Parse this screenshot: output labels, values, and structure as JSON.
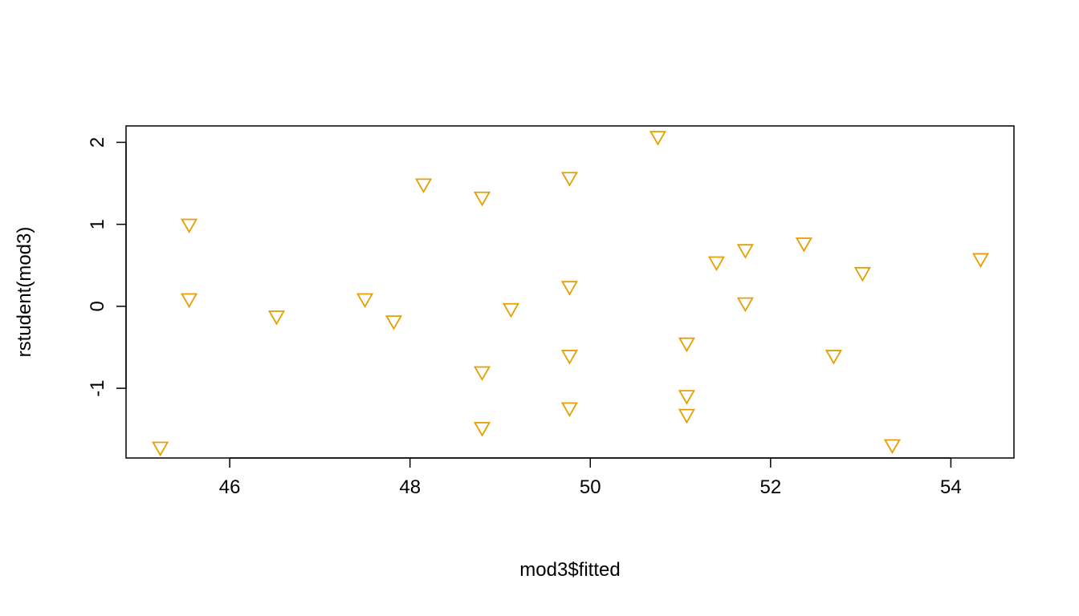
{
  "chart_data": {
    "type": "scatter",
    "title": "",
    "xlabel": "mod3$fitted",
    "ylabel": "rstudent(mod3)",
    "xlim": [
      44.85,
      54.7
    ],
    "ylim": [
      -1.85,
      2.2
    ],
    "xticks": [
      46,
      48,
      50,
      52,
      54
    ],
    "xtick_labels": [
      "46",
      "48",
      "50",
      "52",
      "54"
    ],
    "yticks": [
      -1,
      0,
      1,
      2
    ],
    "ytick_labels": [
      "-1",
      "0",
      "1",
      "2"
    ],
    "grid": false,
    "marker": "down-triangle",
    "marker_color": "#E69F00",
    "points": [
      {
        "x": 45.23,
        "y": -1.73
      },
      {
        "x": 45.55,
        "y": 0.99
      },
      {
        "x": 45.55,
        "y": 0.08
      },
      {
        "x": 46.52,
        "y": -0.13
      },
      {
        "x": 47.5,
        "y": 0.08
      },
      {
        "x": 47.82,
        "y": -0.19
      },
      {
        "x": 48.15,
        "y": 1.48
      },
      {
        "x": 48.8,
        "y": 1.32
      },
      {
        "x": 48.8,
        "y": -0.81
      },
      {
        "x": 48.8,
        "y": -1.49
      },
      {
        "x": 49.12,
        "y": -0.04
      },
      {
        "x": 49.77,
        "y": 1.56
      },
      {
        "x": 49.77,
        "y": 0.23
      },
      {
        "x": 49.77,
        "y": -0.61
      },
      {
        "x": 49.77,
        "y": -1.25
      },
      {
        "x": 50.75,
        "y": 2.06
      },
      {
        "x": 51.07,
        "y": -0.46
      },
      {
        "x": 51.07,
        "y": -1.1
      },
      {
        "x": 51.07,
        "y": -1.33
      },
      {
        "x": 51.4,
        "y": 0.53
      },
      {
        "x": 51.72,
        "y": 0.68
      },
      {
        "x": 51.72,
        "y": 0.03
      },
      {
        "x": 52.37,
        "y": 0.76
      },
      {
        "x": 52.7,
        "y": -0.61
      },
      {
        "x": 53.02,
        "y": 0.4
      },
      {
        "x": 53.35,
        "y": -1.7
      },
      {
        "x": 54.33,
        "y": 0.57
      }
    ]
  }
}
